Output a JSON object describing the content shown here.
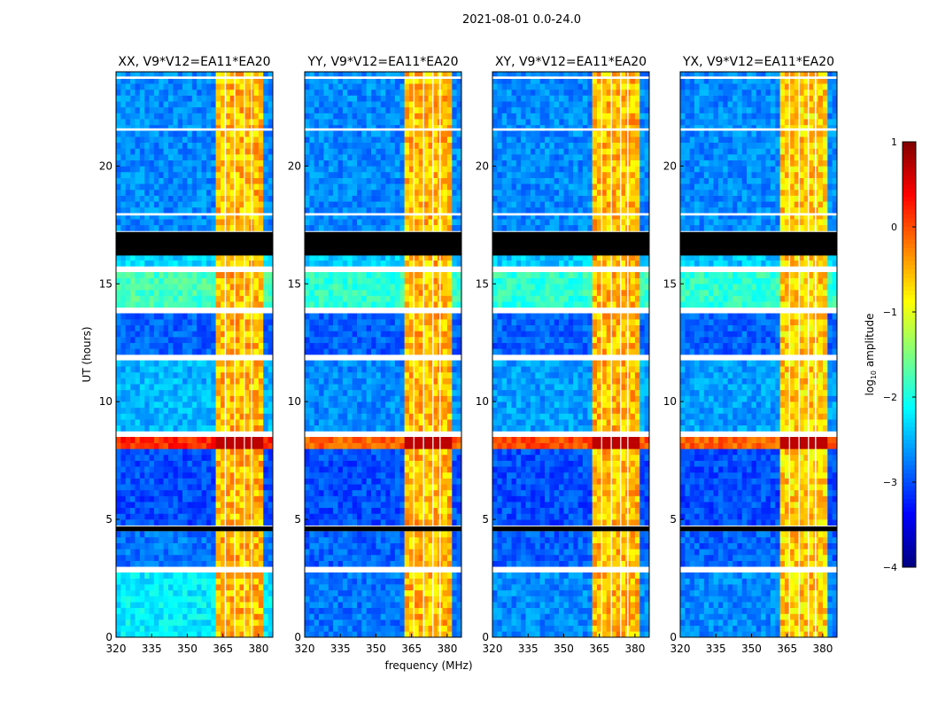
{
  "chart_data": {
    "type": "heatmap",
    "suptitle": "2021-08-01 0.0-24.0",
    "xlabel": "frequency (MHz)",
    "ylabel": "UT (hours)",
    "xlim": [
      320,
      386
    ],
    "ylim": [
      0,
      24
    ],
    "xticks": [
      320,
      335,
      350,
      365,
      380
    ],
    "yticks": [
      0,
      5,
      10,
      15,
      20
    ],
    "colorbar": {
      "label": "log10 amplitude",
      "label_main": "log",
      "label_sub": "10",
      "label_rest": " amplitude",
      "range": [
        -4,
        1
      ],
      "ticks": [
        1,
        0,
        -1,
        -2,
        -3,
        -4
      ],
      "colormap": "jet"
    },
    "flagged_hours": [
      [
        4.5,
        4.7
      ],
      [
        16.2,
        17.2
      ]
    ],
    "gap_hours": [
      [
        2.85,
        2.95
      ],
      [
        8.62,
        8.72
      ],
      [
        11.8,
        11.95
      ],
      [
        13.85,
        13.95
      ],
      [
        15.6,
        15.7
      ],
      [
        17.9,
        18.0
      ],
      [
        21.5,
        21.6
      ],
      [
        23.7,
        23.8
      ]
    ],
    "rfi_band_mhz": [
      362,
      381
    ],
    "rfi_subchannel_edges_mhz": [
      366,
      370,
      374,
      377
    ],
    "panels": [
      {
        "title": "XX, V9*V12=EA11*EA20",
        "segments": [
          [
            0,
            2.85,
            -2.2
          ],
          [
            2.95,
            4.5,
            -2.8
          ],
          [
            4.7,
            8.0,
            -3.0
          ],
          [
            8.0,
            8.6,
            0.2
          ],
          [
            8.72,
            11.8,
            -2.5
          ],
          [
            11.95,
            13.85,
            -2.9
          ],
          [
            13.95,
            15.6,
            -1.8
          ],
          [
            15.7,
            16.2,
            -2.3
          ],
          [
            17.2,
            24,
            -2.7
          ]
        ],
        "rfi_level": -0.7
      },
      {
        "title": "YY, V9*V12=EA11*EA20",
        "segments": [
          [
            0,
            2.85,
            -2.8
          ],
          [
            2.95,
            4.5,
            -2.9
          ],
          [
            4.7,
            8.0,
            -3.0
          ],
          [
            8.0,
            8.6,
            -0.1
          ],
          [
            8.72,
            11.8,
            -2.7
          ],
          [
            11.95,
            13.85,
            -2.9
          ],
          [
            13.95,
            15.6,
            -1.9
          ],
          [
            15.7,
            16.2,
            -2.4
          ],
          [
            17.2,
            24,
            -2.7
          ]
        ],
        "rfi_level": -0.7
      },
      {
        "title": "XY, V9*V12=EA11*EA20",
        "segments": [
          [
            0,
            2.85,
            -2.7
          ],
          [
            2.95,
            4.5,
            -2.9
          ],
          [
            4.7,
            8.0,
            -3.0
          ],
          [
            8.0,
            8.6,
            0.0
          ],
          [
            8.72,
            11.8,
            -2.6
          ],
          [
            11.95,
            13.85,
            -2.9
          ],
          [
            13.95,
            15.6,
            -1.9
          ],
          [
            15.7,
            16.2,
            -2.4
          ],
          [
            17.2,
            24,
            -2.7
          ]
        ],
        "rfi_level": -0.7
      },
      {
        "title": "YX, V9*V12=EA11*EA20",
        "segments": [
          [
            0,
            2.85,
            -2.7
          ],
          [
            2.95,
            4.5,
            -2.9
          ],
          [
            4.7,
            8.0,
            -3.0
          ],
          [
            8.0,
            8.6,
            -0.1
          ],
          [
            8.72,
            11.8,
            -2.6
          ],
          [
            11.95,
            13.85,
            -2.9
          ],
          [
            13.95,
            15.6,
            -1.9
          ],
          [
            15.7,
            16.2,
            -2.4
          ],
          [
            17.2,
            24,
            -2.7
          ]
        ],
        "rfi_level": -0.8
      }
    ]
  }
}
